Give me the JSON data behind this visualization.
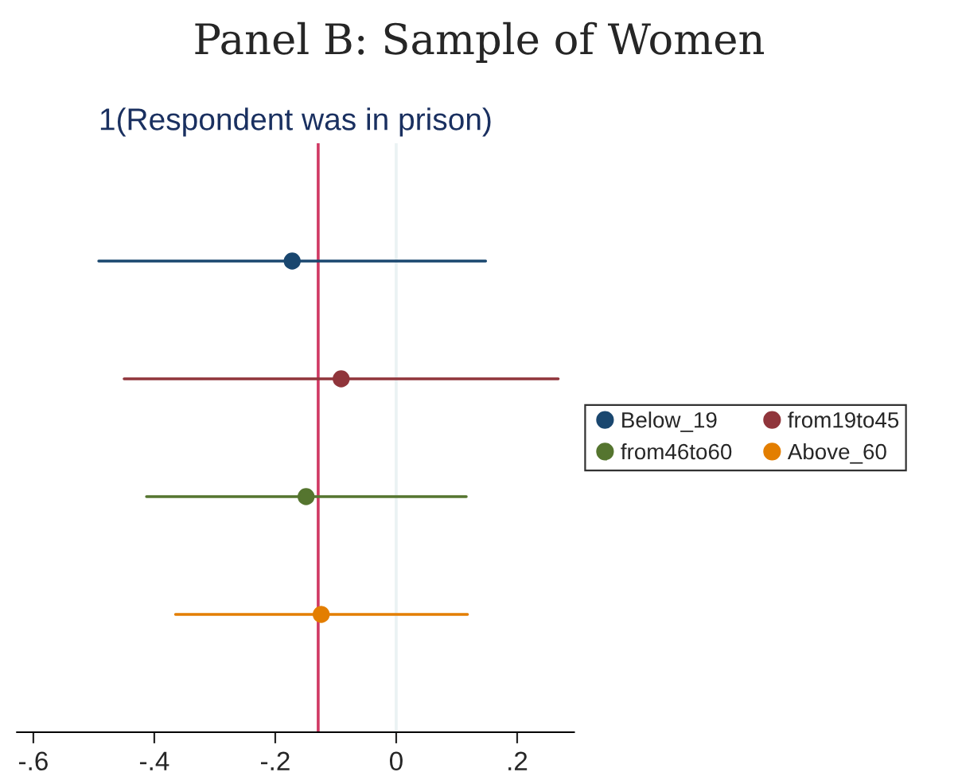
{
  "chart_data": {
    "type": "scatter",
    "orientation": "horizontal",
    "title": "Panel B: Sample of Women",
    "subtitle": "1(Respondent was in prison)",
    "categories": [
      null,
      null,
      null,
      null
    ],
    "series": [
      {
        "name": "Below_19",
        "color": "#1a476f",
        "values": [
          -0.172,
          null,
          null,
          null
        ],
        "errors": [
          [
            -0.492,
            0.148
          ],
          null,
          null,
          null
        ]
      },
      {
        "name": "from19to45",
        "color": "#90353b",
        "values": [
          null,
          -0.091,
          null,
          null
        ],
        "errors": [
          null,
          [
            -0.45,
            0.268
          ],
          null,
          null
        ]
      },
      {
        "name": "from46to60",
        "color": "#55752f",
        "values": [
          null,
          null,
          -0.149,
          null
        ],
        "errors": [
          null,
          null,
          [
            -0.413,
            0.116
          ],
          null
        ]
      },
      {
        "name": "Above_60",
        "color": "#e37e00",
        "values": [
          null,
          null,
          null,
          -0.124
        ],
        "errors": [
          null,
          null,
          null,
          [
            -0.365,
            0.118
          ]
        ]
      }
    ],
    "xlim": [
      -0.627,
      0.294
    ],
    "xticks": [
      {
        "value": -0.6,
        "label": "-.6"
      },
      {
        "value": -0.4,
        "label": "-.4"
      },
      {
        "value": -0.2,
        "label": "-.2"
      },
      0,
      {
        "value": 0.2,
        "label": ".2"
      }
    ],
    "ref_lines": [
      {
        "axis": "x",
        "value": 0,
        "color": "#eaf2f3"
      },
      {
        "axis": "x",
        "value": -0.129,
        "color": "#d03a64"
      }
    ],
    "marker": "circle",
    "legend": "right",
    "grid": false
  }
}
